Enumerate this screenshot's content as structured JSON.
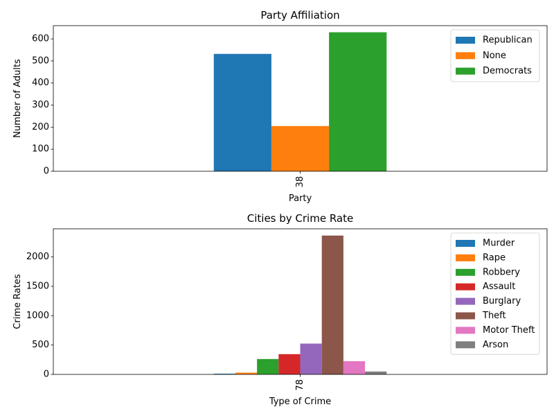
{
  "chart_data": [
    {
      "type": "bar",
      "title": "Party Affiliation",
      "xlabel": "Party",
      "ylabel": "Number of Adults",
      "categories": [
        "38"
      ],
      "ylim": [
        0,
        660
      ],
      "yticks": [
        0,
        100,
        200,
        300,
        400,
        500,
        600
      ],
      "legend_position": "top-right",
      "series": [
        {
          "name": "Republican",
          "values": [
            532
          ],
          "color": "#1f77b4"
        },
        {
          "name": "None",
          "values": [
            205
          ],
          "color": "#ff7f0e"
        },
        {
          "name": "Democrats",
          "values": [
            630
          ],
          "color": "#2ca02c"
        }
      ]
    },
    {
      "type": "bar",
      "title": "Cities by Crime Rate",
      "xlabel": "Type of Crime",
      "ylabel": "Crime Rates",
      "categories": [
        "78"
      ],
      "ylim": [
        0,
        2480
      ],
      "yticks": [
        0,
        500,
        1000,
        1500,
        2000
      ],
      "legend_position": "top-right",
      "series": [
        {
          "name": "Murder",
          "values": [
            12
          ],
          "color": "#1f77b4"
        },
        {
          "name": "Rape",
          "values": [
            30
          ],
          "color": "#ff7f0e"
        },
        {
          "name": "Robbery",
          "values": [
            262
          ],
          "color": "#2ca02c"
        },
        {
          "name": "Assault",
          "values": [
            345
          ],
          "color": "#d62728"
        },
        {
          "name": "Burglary",
          "values": [
            525
          ],
          "color": "#9467bd"
        },
        {
          "name": "Theft",
          "values": [
            2365
          ],
          "color": "#8c564b"
        },
        {
          "name": "Motor Theft",
          "values": [
            225
          ],
          "color": "#e377c2"
        },
        {
          "name": "Arson",
          "values": [
            50
          ],
          "color": "#7f7f7f"
        }
      ]
    }
  ]
}
